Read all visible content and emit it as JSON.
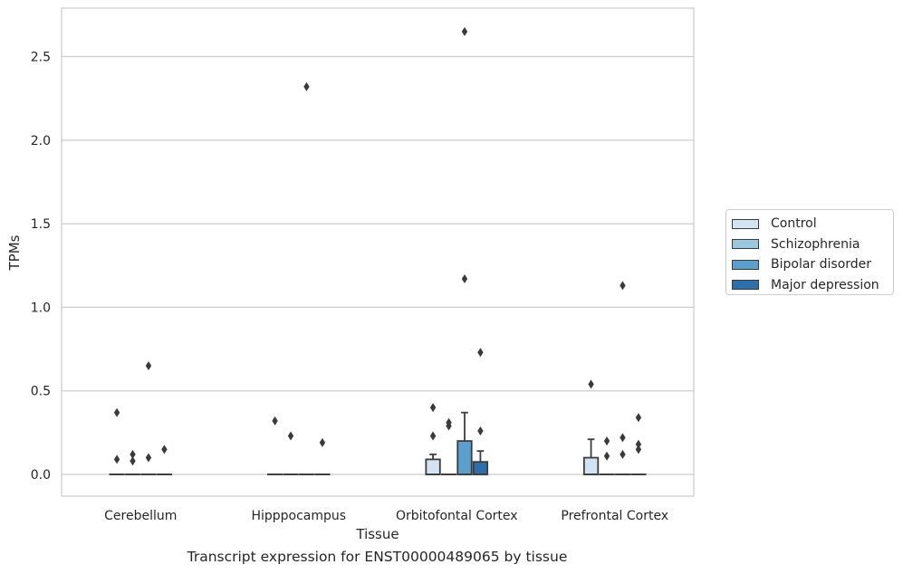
{
  "caption": "Transcript expression for ENST00000489065 by tissue",
  "chart_data": {
    "type": "box",
    "xlabel": "Tissue",
    "ylabel": "TPMs",
    "ylim": [
      -0.13,
      2.79
    ],
    "yticks": [
      0.0,
      0.5,
      1.0,
      1.5,
      2.0,
      2.5
    ],
    "ytick_labels": [
      "0.0",
      "0.5",
      "1.0",
      "1.5",
      "2.0",
      "2.5"
    ],
    "grid": "horizontal",
    "legend_position": "right",
    "categories": [
      "Cerebellum",
      "Hipppocampus",
      "Orbitofontal Cortex",
      "Prefrontal Cortex"
    ],
    "series": [
      {
        "name": "Control",
        "color": "#d2e3f3",
        "boxes": [
          {
            "q1": 0,
            "median": 0,
            "q3": 0,
            "whisker_low": 0,
            "whisker_high": 0,
            "outliers": [
              0.09,
              0.37
            ]
          },
          {
            "q1": 0,
            "median": 0,
            "q3": 0,
            "whisker_low": 0,
            "whisker_high": 0,
            "outliers": [
              0.32
            ]
          },
          {
            "q1": 0,
            "median": 0,
            "q3": 0.09,
            "whisker_low": 0,
            "whisker_high": 0.12,
            "outliers": [
              0.23,
              0.4
            ]
          },
          {
            "q1": 0,
            "median": 0,
            "q3": 0.1,
            "whisker_low": 0,
            "whisker_high": 0.21,
            "outliers": [
              0.54
            ]
          }
        ]
      },
      {
        "name": "Schizophrenia",
        "color": "#9ac8e0",
        "boxes": [
          {
            "q1": 0,
            "median": 0,
            "q3": 0,
            "whisker_low": 0,
            "whisker_high": 0,
            "outliers": [
              0.08,
              0.12
            ]
          },
          {
            "q1": 0,
            "median": 0,
            "q3": 0,
            "whisker_low": 0,
            "whisker_high": 0,
            "outliers": [
              0.23
            ]
          },
          {
            "q1": 0,
            "median": 0,
            "q3": 0,
            "whisker_low": 0,
            "whisker_high": 0,
            "outliers": [
              0.29,
              0.31
            ]
          },
          {
            "q1": 0,
            "median": 0,
            "q3": 0,
            "whisker_low": 0,
            "whisker_high": 0,
            "outliers": [
              0.11,
              0.2
            ]
          }
        ]
      },
      {
        "name": "Bipolar disorder",
        "color": "#5a9fcd",
        "boxes": [
          {
            "q1": 0,
            "median": 0,
            "q3": 0,
            "whisker_low": 0,
            "whisker_high": 0,
            "outliers": [
              0.1,
              0.65
            ]
          },
          {
            "q1": 0,
            "median": 0,
            "q3": 0,
            "whisker_low": 0,
            "whisker_high": 0,
            "outliers": [
              2.32
            ]
          },
          {
            "q1": 0,
            "median": 0,
            "q3": 0.2,
            "whisker_low": 0,
            "whisker_high": 0.37,
            "outliers": [
              1.17,
              2.65
            ]
          },
          {
            "q1": 0,
            "median": 0,
            "q3": 0,
            "whisker_low": 0,
            "whisker_high": 0,
            "outliers": [
              0.12,
              0.22,
              1.13
            ]
          }
        ]
      },
      {
        "name": "Major depression",
        "color": "#2c6fad",
        "boxes": [
          {
            "q1": 0,
            "median": 0,
            "q3": 0,
            "whisker_low": 0,
            "whisker_high": 0,
            "outliers": [
              0.15
            ]
          },
          {
            "q1": 0,
            "median": 0,
            "q3": 0,
            "whisker_low": 0,
            "whisker_high": 0,
            "outliers": [
              0.19
            ]
          },
          {
            "q1": 0,
            "median": 0,
            "q3": 0.075,
            "whisker_low": 0,
            "whisker_high": 0.14,
            "outliers": [
              0.26,
              0.73
            ]
          },
          {
            "q1": 0,
            "median": 0,
            "q3": 0,
            "whisker_low": 0,
            "whisker_high": 0,
            "outliers": [
              0.15,
              0.18,
              0.34
            ]
          }
        ]
      }
    ]
  }
}
